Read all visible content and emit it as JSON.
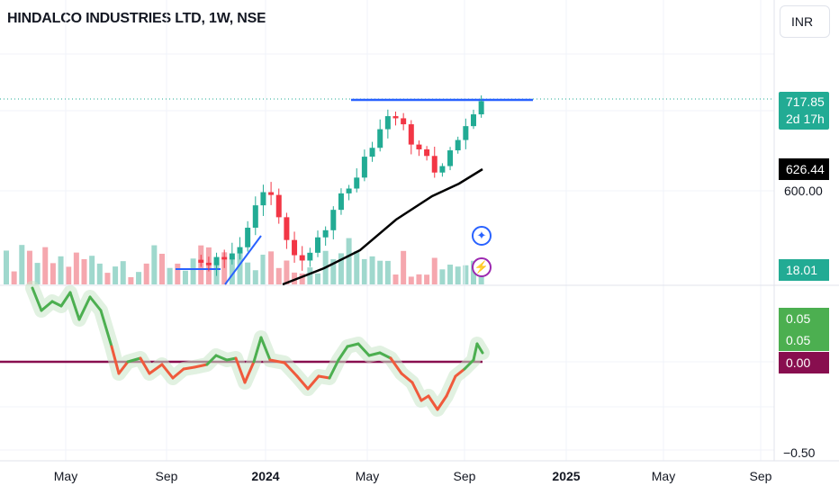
{
  "header": {
    "title": "HINDALCO INDUSTRIES LTD, 1W, NSE",
    "currency_button": "INR"
  },
  "price_axis": {
    "last_price": "717.85",
    "countdown": "2d 17h",
    "ma_value": "626.44",
    "level_600": "600.00",
    "volume": "18.01 M"
  },
  "osc_axis": {
    "value_a": "0.05",
    "value_b": "0.05",
    "zero": "0.00",
    "min_label": "−0.50"
  },
  "time_axis": {
    "labels": [
      {
        "text": "May",
        "bold": false
      },
      {
        "text": "Sep",
        "bold": false
      },
      {
        "text": "2024",
        "bold": true
      },
      {
        "text": "May",
        "bold": false
      },
      {
        "text": "Sep",
        "bold": false
      },
      {
        "text": "2025",
        "bold": true
      },
      {
        "text": "May",
        "bold": false
      },
      {
        "text": "Sep",
        "bold": false
      }
    ]
  },
  "icons": {
    "tools": "sparkle-icon",
    "alerts": "lightning-icon"
  },
  "colors": {
    "up": "#22ab94",
    "down": "#f23645",
    "ma": "#000000",
    "trendline": "#2962ff",
    "osc_up": "#4caf50",
    "osc_down": "#f05a3c",
    "zero_line": "#880e4f"
  },
  "chart_data": {
    "type": "candlestick",
    "interval": "1W",
    "price_levels_shown": [
      717.85,
      626.44,
      600.0
    ],
    "volume_last": "18.01 M",
    "oscillator_levels_shown": [
      0.05,
      0.05,
      0.0,
      -0.5
    ]
  }
}
